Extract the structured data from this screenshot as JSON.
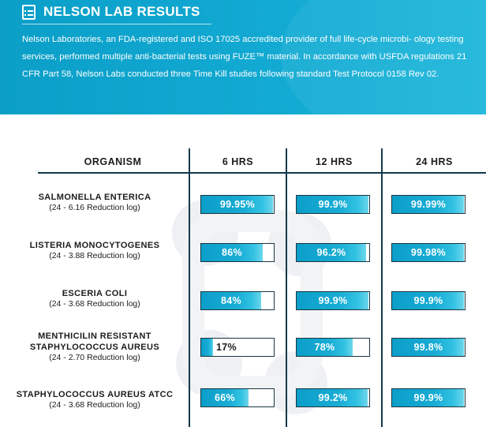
{
  "header": {
    "icon": "document-list-icon",
    "title": "NELSON LAB RESULTS",
    "description": "Nelson Laboratories, an FDA-registered and ISO 17025 accredited provider of full life-cycle microbi- ology testing services, performed multiple anti-bacterial tests using FUZE™ material. In accordance with USFDA regulations 21 CFR Part 58, Nelson Labs conducted three Time Kill studies following standard Test Protocol 0158 Rev 02."
  },
  "table": {
    "columns": [
      "ORGANISM",
      "6 HRS",
      "12 HRS",
      "24 HRS"
    ],
    "rows": [
      {
        "name_lines": [
          "SALMONELLA ENTERICA"
        ],
        "log": "(24 - 6.16 Reduction log)",
        "values": [
          {
            "label": "99.95%",
            "fill": 0.9995
          },
          {
            "label": "99.9%",
            "fill": 0.999
          },
          {
            "label": "99.99%",
            "fill": 0.9999
          }
        ]
      },
      {
        "name_lines": [
          "LISTERIA MONOCYTOGENES"
        ],
        "log": "(24 - 3.88 Reduction log)",
        "values": [
          {
            "label": "86%",
            "fill": 0.86
          },
          {
            "label": "96.2%",
            "fill": 0.962
          },
          {
            "label": "99.98%",
            "fill": 0.9998
          }
        ]
      },
      {
        "name_lines": [
          "ESCERIA COLI"
        ],
        "log": "(24 - 3.68 Reduction log)",
        "values": [
          {
            "label": "84%",
            "fill": 0.84
          },
          {
            "label": "99.9%",
            "fill": 0.999
          },
          {
            "label": "99.9%",
            "fill": 0.999
          }
        ]
      },
      {
        "name_lines": [
          "MENTHICILIN RESISTANT",
          "STAPHYLOCOCCUS AUREUS"
        ],
        "log": "(24 - 2.70 Reduction log)",
        "values": [
          {
            "label": "17%",
            "fill": 0.17
          },
          {
            "label": "78%",
            "fill": 0.78
          },
          {
            "label": "99.8%",
            "fill": 0.998
          }
        ]
      },
      {
        "name_lines": [
          "STAPHYLOCOCCUS AUREUS ATCC"
        ],
        "log": "(24 - 3.68 Reduction log)",
        "values": [
          {
            "label": "66%",
            "fill": 0.66
          },
          {
            "label": "99.2%",
            "fill": 0.992
          },
          {
            "label": "99.9%",
            "fill": 0.999
          }
        ]
      }
    ]
  },
  "colors": {
    "accent": "#12a9d2",
    "bar_border": "#1b3540",
    "text": "#1c1c1c"
  }
}
